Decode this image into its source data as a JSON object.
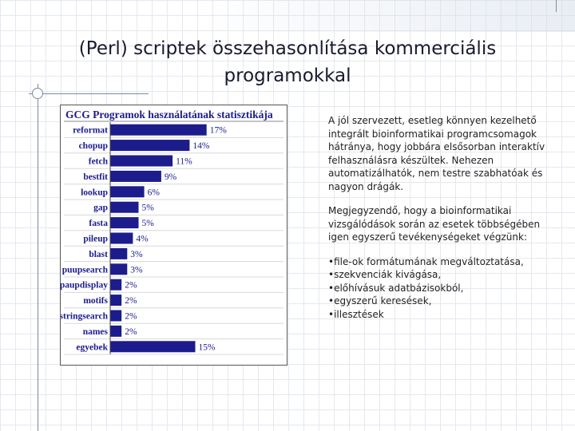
{
  "slide": {
    "title_line1": "(Perl) scriptek összehasonlítása kommerciális",
    "title_line2": "programokkal"
  },
  "chart_data": {
    "type": "bar",
    "orientation": "horizontal",
    "title": "GCG Programok használatának statisztikája",
    "categories": [
      "reformat",
      "chopup",
      "fetch",
      "bestfit",
      "lookup",
      "gap",
      "fasta",
      "pileup",
      "blast",
      "puupsearch",
      "paupdisplay",
      "motifs",
      "stringsearch",
      "names",
      "egyebek"
    ],
    "values": [
      17,
      14,
      11,
      9,
      6,
      5,
      5,
      4,
      3,
      3,
      2,
      2,
      2,
      2,
      15
    ],
    "value_labels": [
      "17%",
      "14%",
      "11%",
      "9%",
      "6%",
      "5%",
      "5%",
      "4%",
      "3%",
      "3%",
      "2%",
      "2%",
      "2%",
      "2%",
      "15%"
    ],
    "xlim": [
      0,
      30
    ],
    "bar_color": "#1c1c8c",
    "label_color": "#1c1c8c"
  },
  "text": {
    "para1": "A jól szervezett, esetleg könnyen kezelhető integrált bioinformatikai programcsomagok hátránya, hogy jobbára elsősorban interaktív felhasználásra készültek. Nehezen automatizálhatók, nem testre szabhatóak és nagyon drágák.",
    "para2": "Megjegyzendő, hogy a bioinformatikai vizsgálódások során az esetek többségében igen egyszerű tevékenységeket végzünk:",
    "bullets": [
      "file-ok formátumának megváltoztatása,",
      "szekvenciák kivágása,",
      "előhívásuk adatbázisokból,",
      "egyszerű keresések,",
      "illesztések"
    ]
  }
}
